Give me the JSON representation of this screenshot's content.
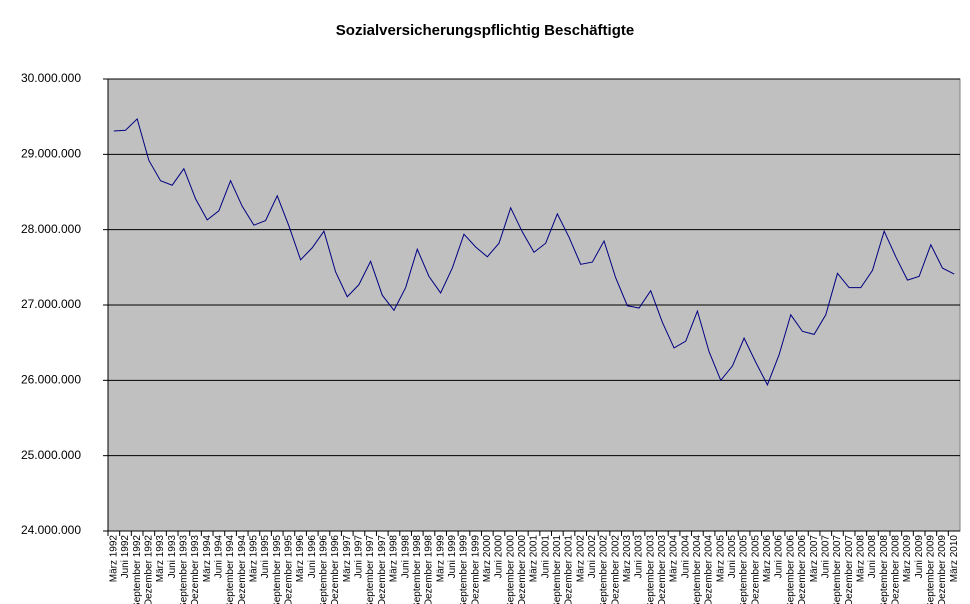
{
  "chart_data": {
    "type": "line",
    "title": "Sozialversicherungspflichtig Beschäftigte",
    "categories": [
      "März 1992",
      "Juni 1992",
      "September 1992",
      "Dezember 1992",
      "März 1993",
      "Juni 1993",
      "September 1993",
      "Dezember 1993",
      "März 1994",
      "Juni 1994",
      "September 1994",
      "Dezember 1994",
      "März 1995",
      "Juni 1995",
      "September 1995",
      "Dezember 1995",
      "März 1996",
      "Juni 1996",
      "September 1996",
      "Dezember 1996",
      "März 1997",
      "Juni 1997",
      "September 1997",
      "Dezember 1997",
      "März 1998",
      "Juni 1998",
      "September 1998",
      "Dezember 1998",
      "März 1999",
      "Juni 1999",
      "September 1999",
      "Dezember 1999",
      "März 2000",
      "Juni 2000",
      "September 2000",
      "Dezember 2000",
      "März 2001",
      "Juni 2001",
      "September 2001",
      "Dezember 2001",
      "März 2002",
      "Juni 2002",
      "September 2002",
      "Dezember 2002",
      "März 2003",
      "Juni 2003",
      "September 2003",
      "Dezember 2003",
      "März 2004",
      "Juni 2004",
      "September 2004",
      "Dezember 2004",
      "März 2005",
      "Juni 2005",
      "September 2005",
      "Dezember 2005",
      "März 2006",
      "Juni 2006",
      "September 2006",
      "Dezember 2006",
      "März 2007",
      "Juni 2007",
      "September 2007",
      "Dezember 2007",
      "März 2008",
      "Juni 2008",
      "September 2008",
      "Dezember 2008",
      "März 2009",
      "Juni 2009",
      "September 2009",
      "Dezember 2009",
      "März 2010"
    ],
    "color": "#000080",
    "values": [
      29310000,
      29320000,
      29470000,
      28920000,
      28650000,
      28590000,
      28810000,
      28410000,
      28130000,
      28250000,
      28650000,
      28310000,
      28060000,
      28120000,
      28450000,
      28050000,
      27600000,
      27760000,
      27980000,
      27440000,
      27110000,
      27270000,
      27580000,
      27130000,
      26930000,
      27230000,
      27740000,
      27380000,
      27160000,
      27490000,
      27940000,
      27770000,
      27640000,
      27820000,
      28290000,
      27970000,
      27700000,
      27820000,
      28210000,
      27900000,
      27540000,
      27570000,
      27850000,
      27360000,
      26990000,
      26960000,
      27190000,
      26770000,
      26430000,
      26520000,
      26920000,
      26380000,
      26000000,
      26190000,
      26560000,
      26240000,
      25940000,
      26340000,
      26870000,
      26650000,
      26610000,
      26870000,
      27420000,
      27230000,
      27230000,
      27460000,
      27980000,
      27640000,
      27330000,
      27380000,
      27800000,
      27490000,
      27410000
    ],
    "ylim": [
      24000000,
      30000000
    ],
    "yticks": [
      {
        "value": 24000000,
        "label": "24.000.000"
      },
      {
        "value": 25000000,
        "label": "25.000.000"
      },
      {
        "value": 26000000,
        "label": "26.000.000"
      },
      {
        "value": 27000000,
        "label": "27.000.000"
      },
      {
        "value": 28000000,
        "label": "28.000.000"
      },
      {
        "value": 29000000,
        "label": "29.000.000"
      },
      {
        "value": 30000000,
        "label": "30.000.000"
      }
    ],
    "grid": true
  }
}
